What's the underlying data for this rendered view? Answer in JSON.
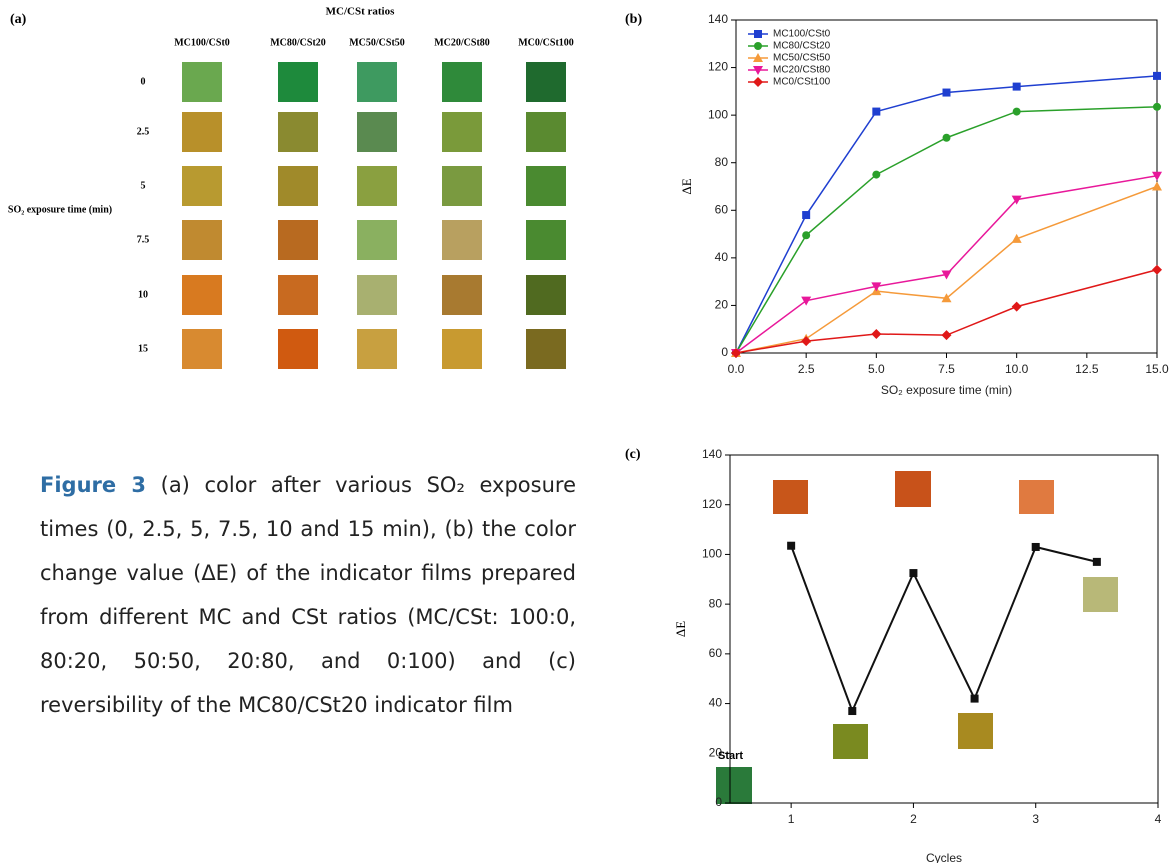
{
  "panel_a": {
    "label": "(a)",
    "title": "MC/CSt ratios",
    "columns": [
      "MC100/CSt0",
      "MC80/CSt20",
      "MC50/CSt50",
      "MC20/CSt80",
      "MC0/CSt100"
    ],
    "rows": [
      0,
      2.5,
      5,
      7.5,
      10,
      15
    ],
    "row_title": "SO₂ exposure time (min)",
    "swatch_colors": [
      [
        "#6aa84f",
        "#1e8a3c",
        "#3e9a60",
        "#2f8a3a",
        "#1f6a2e"
      ],
      [
        "#b8902a",
        "#8a8a30",
        "#5a8a50",
        "#7a9a3a",
        "#5a8a30"
      ],
      [
        "#b89a30",
        "#a08a2a",
        "#8aa040",
        "#7a9a40",
        "#4a8a30"
      ],
      [
        "#c08a30",
        "#b86a20",
        "#8ab060",
        "#b8a060",
        "#4a8a30"
      ],
      [
        "#d87a20",
        "#c86a20",
        "#a8b070",
        "#a87a30",
        "#506a20"
      ],
      [
        "#d88a30",
        "#d05a10",
        "#c8a040",
        "#c89a30",
        "#7a6a20"
      ]
    ]
  },
  "chart_data": [
    {
      "type": "line",
      "panel_label": "(b)",
      "x_label": "SO₂ exposure time (min)",
      "y_label": "ΔE",
      "x": [
        0,
        2.5,
        5,
        7.5,
        10,
        15
      ],
      "xlim": [
        0,
        15
      ],
      "ylim": [
        0,
        140
      ],
      "xticks": [
        {
          "value": 0,
          "label": "0.0"
        },
        {
          "value": 2.5,
          "label": "2.5"
        },
        {
          "value": 5,
          "label": "5.0"
        },
        {
          "value": 7.5,
          "label": "7.5"
        },
        {
          "value": 10,
          "label": "10.0"
        },
        {
          "value": 12.5,
          "label": "12.5"
        },
        {
          "value": 15,
          "label": "15.0"
        }
      ],
      "yticks": [
        0,
        20,
        40,
        60,
        80,
        100,
        120,
        140
      ],
      "legend": "upper-left",
      "series": [
        {
          "name": "MC100/CSt0",
          "color": "#1f3fd0",
          "marker": "square",
          "values": [
            0,
            58,
            101.5,
            109.5,
            112,
            116.5
          ]
        },
        {
          "name": "MC80/CSt20",
          "color": "#2aa02a",
          "marker": "circle",
          "values": [
            0,
            49.5,
            75,
            90.5,
            101.5,
            103.5
          ]
        },
        {
          "name": "MC50/CSt50",
          "color": "#f59a3a",
          "marker": "triangle",
          "values": [
            0,
            6,
            26,
            23,
            48,
            70
          ]
        },
        {
          "name": "MC20/CSt80",
          "color": "#e8189a",
          "marker": "triangle-down",
          "values": [
            0,
            22,
            28,
            33,
            64.5,
            74.5
          ]
        },
        {
          "name": "MC0/CSt100",
          "color": "#e01818",
          "marker": "diamond",
          "values": [
            0,
            5,
            8,
            7.5,
            19.5,
            35
          ]
        }
      ]
    },
    {
      "type": "line",
      "panel_label": "(c)",
      "x_label": "Cycles",
      "y_label": "ΔE",
      "annotation": "Start",
      "x": [
        1,
        1.5,
        2,
        2.5,
        3,
        3.5
      ],
      "xlim": [
        0.5,
        4
      ],
      "ylim": [
        0,
        140
      ],
      "xticks": [
        1,
        2,
        3,
        4
      ],
      "yticks": [
        0,
        20,
        40,
        60,
        80,
        100,
        120,
        140
      ],
      "series": [
        {
          "color": "#111111",
          "marker": "square",
          "values": [
            103.5,
            37,
            92.5,
            42,
            103,
            97
          ]
        }
      ]
    }
  ],
  "caption": {
    "label": "Figure 3",
    "text": "(a) color after various SO₂ exposure times (0, 2.5, 5, 7.5, 10 and 15 min), (b) the color change value (ΔE) of the indicator films prepared from different MC and CSt ratios (MC/CSt: 100:0, 80:20, 50:50, 20:80, and 0:100) and (c) reversibility of the MC80/CSt20 indicator film"
  }
}
